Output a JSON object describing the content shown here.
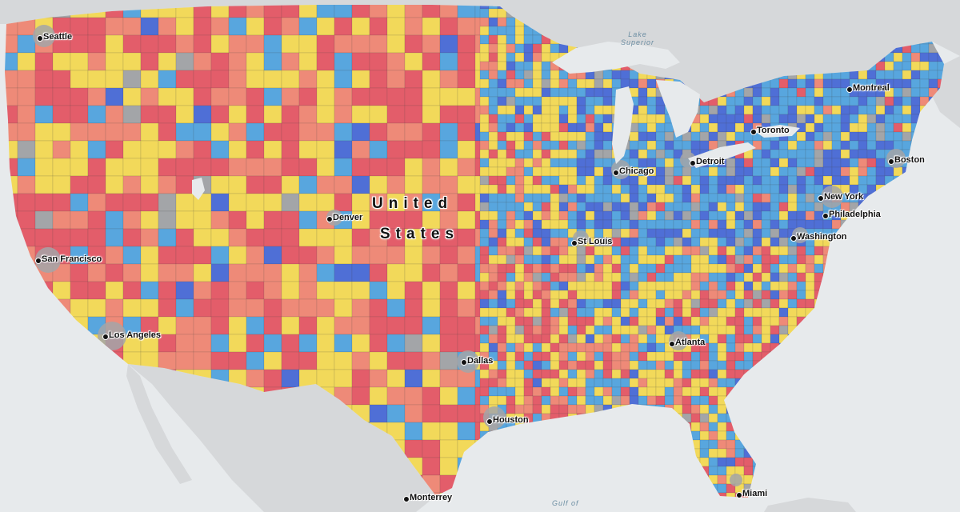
{
  "map": {
    "country_label_line1": "United",
    "country_label_line2": "States",
    "water_labels": {
      "lake_superior_line1": "Lake",
      "lake_superior_line2": "Superior",
      "gulf": "Gulf of"
    },
    "cities": [
      {
        "id": "seattle",
        "name": "Seattle"
      },
      {
        "id": "san-francisco",
        "name": "San Francisco"
      },
      {
        "id": "los-angeles",
        "name": "Los Angeles"
      },
      {
        "id": "denver",
        "name": "Denver"
      },
      {
        "id": "dallas",
        "name": "Dallas"
      },
      {
        "id": "houston",
        "name": "Houston"
      },
      {
        "id": "monterrey",
        "name": "Monterrey"
      },
      {
        "id": "st-louis",
        "name": "St Louis"
      },
      {
        "id": "chicago",
        "name": "Chicago"
      },
      {
        "id": "detroit",
        "name": "Detroit"
      },
      {
        "id": "toronto",
        "name": "Toronto"
      },
      {
        "id": "montreal",
        "name": "Montreal"
      },
      {
        "id": "boston",
        "name": "Boston"
      },
      {
        "id": "new-york",
        "name": "New York"
      },
      {
        "id": "philadelphia",
        "name": "Philadelphia"
      },
      {
        "id": "washington",
        "name": "Washington"
      },
      {
        "id": "atlanta",
        "name": "Atlanta"
      },
      {
        "id": "miami",
        "name": "Miami"
      }
    ],
    "palette": {
      "red": "#e35d6a",
      "salmon": "#ee8a78",
      "yellow": "#f2d95a",
      "light_blue": "#58a6de",
      "blue": "#4f6fd6",
      "gray": "#a3a5a8",
      "land": "#d6d8da",
      "water": "#e7eaec"
    }
  }
}
